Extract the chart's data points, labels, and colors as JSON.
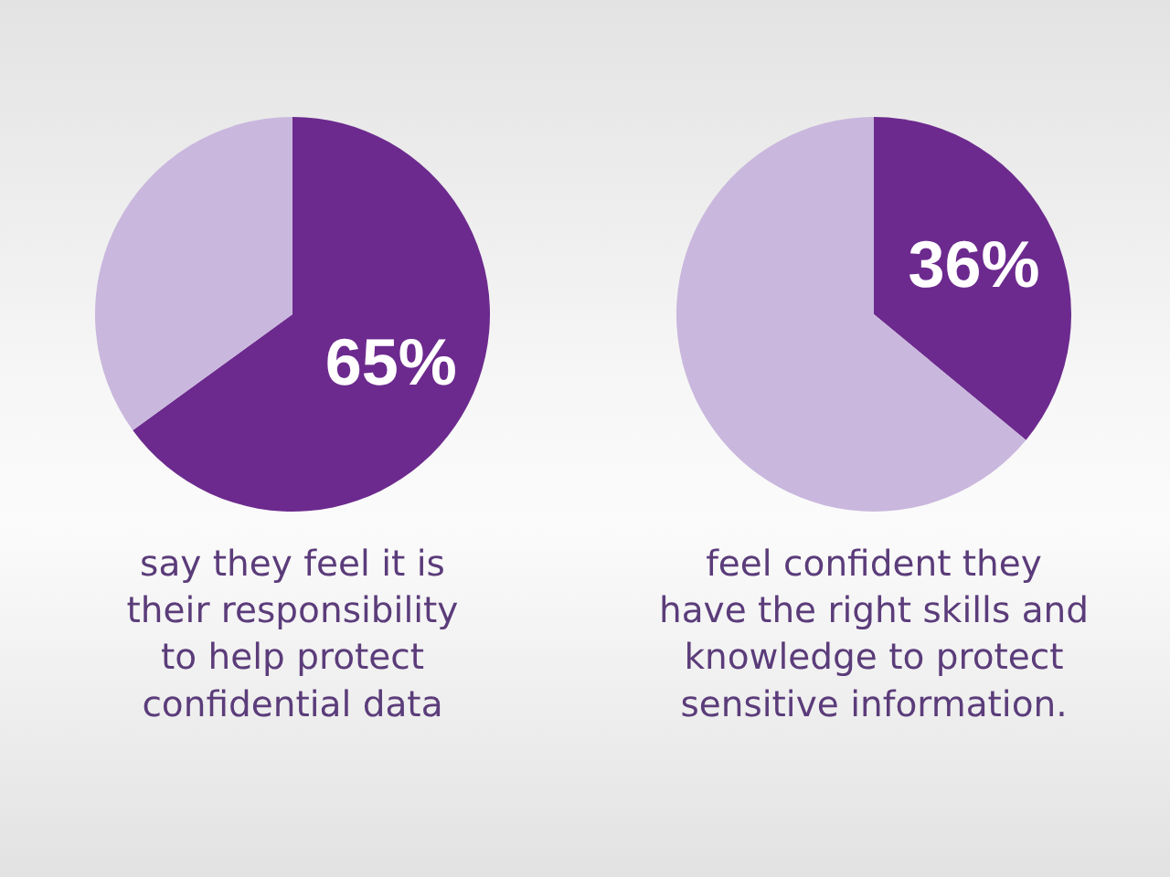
{
  "chart_data": [
    {
      "type": "pie",
      "title": "say they feel it is\ntheir responsibility\nto help protect\nconfidential data",
      "categories": [
        null,
        null
      ],
      "values": [
        65,
        35
      ],
      "colors": [
        "#6c2a8e",
        "#c9b7dd"
      ],
      "value_labels": [
        "65%",
        null
      ]
    },
    {
      "type": "pie",
      "title": "feel confident they\nhave the right skills and\nknowledge to protect\nsensitive information.",
      "categories": [
        null,
        null
      ],
      "values": [
        36,
        64
      ],
      "colors": [
        "#6c2a8e",
        "#c9b7dd"
      ],
      "value_labels": [
        "36%",
        null
      ]
    }
  ]
}
